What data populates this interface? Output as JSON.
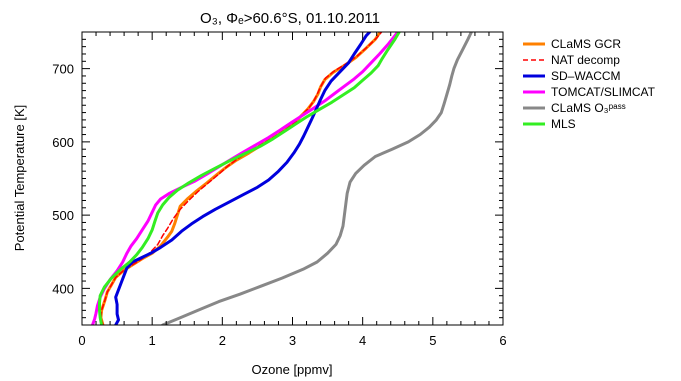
{
  "chart_data": {
    "type": "line",
    "title": "O₃, Φₑ>60.6°S, 01.10.2011",
    "xlabel": "Ozone [ppmv]",
    "ylabel": "Potential Temperature [K]",
    "xlim": [
      0,
      6
    ],
    "ylim": [
      350,
      750
    ],
    "xticks": [
      0,
      1,
      2,
      3,
      4,
      5,
      6
    ],
    "yticks": [
      400,
      500,
      600,
      700
    ],
    "grid": false,
    "legend_position": "outside-right",
    "series": [
      {
        "name": "CLaMS GCR",
        "color": "#ff8000",
        "dash": "solid",
        "points": [
          [
            0.3,
            350
          ],
          [
            0.27,
            360
          ],
          [
            0.28,
            370
          ],
          [
            0.33,
            385
          ],
          [
            0.36,
            395
          ],
          [
            0.42,
            405
          ],
          [
            0.48,
            415
          ],
          [
            0.6,
            425
          ],
          [
            0.72,
            432
          ],
          [
            0.85,
            440
          ],
          [
            1.0,
            448
          ],
          [
            1.12,
            458
          ],
          [
            1.22,
            470
          ],
          [
            1.28,
            478
          ],
          [
            1.32,
            488
          ],
          [
            1.36,
            500
          ],
          [
            1.4,
            512
          ],
          [
            1.5,
            522
          ],
          [
            1.62,
            532
          ],
          [
            1.78,
            544
          ],
          [
            1.92,
            555
          ],
          [
            2.05,
            565
          ],
          [
            2.2,
            575
          ],
          [
            2.38,
            585
          ],
          [
            2.55,
            595
          ],
          [
            2.72,
            605
          ],
          [
            2.88,
            615
          ],
          [
            3.02,
            625
          ],
          [
            3.12,
            635
          ],
          [
            3.22,
            645
          ],
          [
            3.3,
            655
          ],
          [
            3.36,
            665
          ],
          [
            3.4,
            675
          ],
          [
            3.46,
            685
          ],
          [
            3.58,
            695
          ],
          [
            3.75,
            705
          ],
          [
            3.9,
            715
          ],
          [
            4.05,
            728
          ],
          [
            4.18,
            740
          ],
          [
            4.25,
            750
          ]
        ]
      },
      {
        "name": "NAT decomp",
        "color": "#ff0000",
        "dash": "dashed",
        "points": [
          [
            0.3,
            350
          ],
          [
            0.27,
            360
          ],
          [
            0.28,
            370
          ],
          [
            0.33,
            385
          ],
          [
            0.36,
            395
          ],
          [
            0.42,
            405
          ],
          [
            0.48,
            415
          ],
          [
            0.6,
            425
          ],
          [
            0.72,
            432
          ],
          [
            0.85,
            440
          ],
          [
            0.98,
            450
          ],
          [
            1.08,
            460
          ],
          [
            1.15,
            472
          ],
          [
            1.22,
            482
          ],
          [
            1.3,
            495
          ],
          [
            1.4,
            508
          ],
          [
            1.52,
            520
          ],
          [
            1.65,
            532
          ],
          [
            1.8,
            544
          ],
          [
            1.95,
            556
          ],
          [
            2.08,
            567
          ],
          [
            2.22,
            577
          ],
          [
            2.38,
            587
          ],
          [
            2.56,
            597
          ],
          [
            2.74,
            607
          ],
          [
            2.9,
            617
          ],
          [
            3.04,
            627
          ],
          [
            3.14,
            637
          ],
          [
            3.24,
            647
          ],
          [
            3.31,
            657
          ],
          [
            3.36,
            667
          ],
          [
            3.41,
            677
          ],
          [
            3.47,
            687
          ],
          [
            3.6,
            697
          ],
          [
            3.77,
            707
          ],
          [
            3.92,
            717
          ],
          [
            4.07,
            730
          ],
          [
            4.2,
            742
          ],
          [
            4.27,
            750
          ]
        ]
      },
      {
        "name": "SD–WACCM",
        "color": "#0000dd",
        "dash": "solid",
        "points": [
          [
            0.48,
            350
          ],
          [
            0.52,
            357
          ],
          [
            0.5,
            365
          ],
          [
            0.5,
            378
          ],
          [
            0.48,
            388
          ],
          [
            0.52,
            398
          ],
          [
            0.56,
            408
          ],
          [
            0.6,
            418
          ],
          [
            0.64,
            428
          ],
          [
            0.72,
            436
          ],
          [
            0.85,
            442
          ],
          [
            0.98,
            448
          ],
          [
            1.12,
            456
          ],
          [
            1.28,
            466
          ],
          [
            1.42,
            478
          ],
          [
            1.56,
            488
          ],
          [
            1.72,
            498
          ],
          [
            1.9,
            508
          ],
          [
            2.1,
            518
          ],
          [
            2.3,
            528
          ],
          [
            2.5,
            538
          ],
          [
            2.66,
            548
          ],
          [
            2.8,
            560
          ],
          [
            2.92,
            572
          ],
          [
            3.02,
            585
          ],
          [
            3.1,
            597
          ],
          [
            3.16,
            608
          ],
          [
            3.22,
            620
          ],
          [
            3.28,
            632
          ],
          [
            3.34,
            645
          ],
          [
            3.4,
            658
          ],
          [
            3.46,
            670
          ],
          [
            3.55,
            683
          ],
          [
            3.68,
            696
          ],
          [
            3.8,
            708
          ],
          [
            3.88,
            720
          ],
          [
            3.97,
            733
          ],
          [
            4.05,
            745
          ],
          [
            4.1,
            750
          ]
        ]
      },
      {
        "name": "TOMCAT/SLIMCAT",
        "color": "#ff00ff",
        "dash": "solid",
        "points": [
          [
            0.15,
            350
          ],
          [
            0.18,
            358
          ],
          [
            0.2,
            366
          ],
          [
            0.22,
            376
          ],
          [
            0.26,
            388
          ],
          [
            0.32,
            400
          ],
          [
            0.4,
            412
          ],
          [
            0.5,
            424
          ],
          [
            0.58,
            436
          ],
          [
            0.64,
            448
          ],
          [
            0.7,
            458
          ],
          [
            0.78,
            468
          ],
          [
            0.86,
            480
          ],
          [
            0.94,
            492
          ],
          [
            1.0,
            504
          ],
          [
            1.05,
            514
          ],
          [
            1.12,
            522
          ],
          [
            1.25,
            530
          ],
          [
            1.42,
            538
          ],
          [
            1.6,
            546
          ],
          [
            1.78,
            556
          ],
          [
            1.95,
            566
          ],
          [
            2.12,
            576
          ],
          [
            2.3,
            586
          ],
          [
            2.48,
            596
          ],
          [
            2.66,
            606
          ],
          [
            2.82,
            616
          ],
          [
            2.98,
            626
          ],
          [
            3.14,
            636
          ],
          [
            3.3,
            646
          ],
          [
            3.46,
            656
          ],
          [
            3.6,
            666
          ],
          [
            3.74,
            676
          ],
          [
            3.88,
            686
          ],
          [
            4.0,
            696
          ],
          [
            4.12,
            708
          ],
          [
            4.24,
            720
          ],
          [
            4.36,
            733
          ],
          [
            4.46,
            745
          ],
          [
            4.5,
            750
          ]
        ]
      },
      {
        "name": "CLaMS O₃ᵖᵃˢˢ",
        "color": "#888888",
        "dash": "solid",
        "points": [
          [
            1.15,
            350
          ],
          [
            1.4,
            360
          ],
          [
            1.7,
            372
          ],
          [
            1.95,
            382
          ],
          [
            2.25,
            392
          ],
          [
            2.55,
            403
          ],
          [
            2.85,
            414
          ],
          [
            3.15,
            426
          ],
          [
            3.35,
            436
          ],
          [
            3.5,
            448
          ],
          [
            3.62,
            460
          ],
          [
            3.68,
            472
          ],
          [
            3.72,
            485
          ],
          [
            3.74,
            500
          ],
          [
            3.76,
            515
          ],
          [
            3.78,
            530
          ],
          [
            3.82,
            545
          ],
          [
            3.9,
            557
          ],
          [
            4.02,
            568
          ],
          [
            4.18,
            580
          ],
          [
            4.42,
            590
          ],
          [
            4.65,
            600
          ],
          [
            4.82,
            610
          ],
          [
            4.95,
            620
          ],
          [
            5.05,
            630
          ],
          [
            5.12,
            640
          ],
          [
            5.16,
            652
          ],
          [
            5.2,
            665
          ],
          [
            5.24,
            678
          ],
          [
            5.27,
            690
          ],
          [
            5.3,
            700
          ],
          [
            5.35,
            712
          ],
          [
            5.42,
            725
          ],
          [
            5.5,
            740
          ],
          [
            5.55,
            750
          ]
        ]
      },
      {
        "name": "MLS",
        "color": "#33ee22",
        "dash": "solid",
        "points": [
          [
            0.28,
            350
          ],
          [
            0.26,
            360
          ],
          [
            0.25,
            370
          ],
          [
            0.25,
            380
          ],
          [
            0.26,
            390
          ],
          [
            0.32,
            402
          ],
          [
            0.42,
            414
          ],
          [
            0.55,
            426
          ],
          [
            0.68,
            436
          ],
          [
            0.78,
            446
          ],
          [
            0.86,
            456
          ],
          [
            0.94,
            468
          ],
          [
            1.0,
            480
          ],
          [
            1.04,
            492
          ],
          [
            1.08,
            503
          ],
          [
            1.15,
            514
          ],
          [
            1.24,
            524
          ],
          [
            1.36,
            534
          ],
          [
            1.52,
            544
          ],
          [
            1.7,
            554
          ],
          [
            1.9,
            564
          ],
          [
            2.1,
            574
          ],
          [
            2.32,
            584
          ],
          [
            2.54,
            594
          ],
          [
            2.72,
            604
          ],
          [
            2.88,
            614
          ],
          [
            3.04,
            624
          ],
          [
            3.2,
            634
          ],
          [
            3.38,
            644
          ],
          [
            3.56,
            654
          ],
          [
            3.72,
            664
          ],
          [
            3.88,
            674
          ],
          [
            4.0,
            684
          ],
          [
            4.12,
            694
          ],
          [
            4.22,
            704
          ],
          [
            4.28,
            714
          ],
          [
            4.36,
            726
          ],
          [
            4.46,
            740
          ],
          [
            4.52,
            750
          ]
        ]
      }
    ]
  }
}
